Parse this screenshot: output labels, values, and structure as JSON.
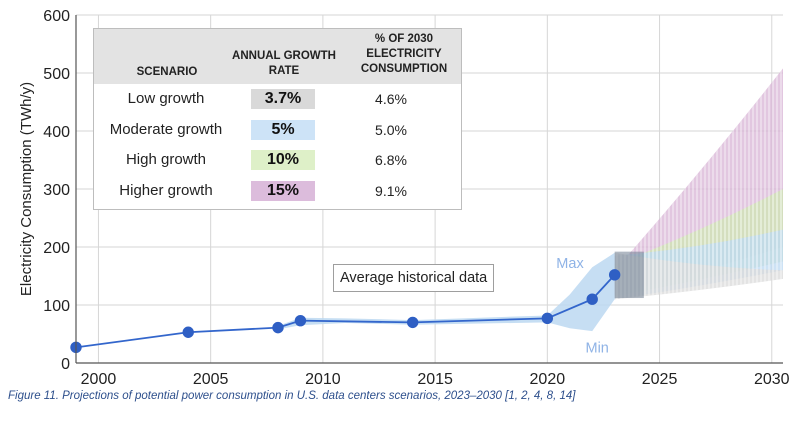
{
  "chart_data": {
    "type": "line",
    "ylabel": "Electricity Consumption (TWh/y)",
    "xlim": [
      1999,
      2030.5
    ],
    "ylim": [
      0,
      600
    ],
    "x_ticks": [
      2000,
      2005,
      2010,
      2015,
      2020,
      2025,
      2030
    ],
    "y_ticks": [
      0,
      100,
      200,
      300,
      400,
      500,
      600
    ],
    "grid": true,
    "historical": {
      "name": "Average historical data",
      "points": [
        {
          "x": 1999,
          "y": 27
        },
        {
          "x": 2004,
          "y": 53
        },
        {
          "x": 2008,
          "y": 61
        },
        {
          "x": 2009,
          "y": 73
        },
        {
          "x": 2014,
          "y": 70
        },
        {
          "x": 2020,
          "y": 77
        },
        {
          "x": 2022,
          "y": 110
        },
        {
          "x": 2023,
          "y": 152
        }
      ],
      "range_band": [
        {
          "x": 2008,
          "low": 58,
          "high": 64
        },
        {
          "x": 2009,
          "low": 65,
          "high": 78
        },
        {
          "x": 2011,
          "low": 69,
          "high": 77
        },
        {
          "x": 2014,
          "low": 66,
          "high": 74
        },
        {
          "x": 2020,
          "low": 70,
          "high": 82
        },
        {
          "x": 2021,
          "low": 60,
          "high": 118
        },
        {
          "x": 2022,
          "low": 55,
          "high": 165
        },
        {
          "x": 2023,
          "low": 110,
          "high": 190
        }
      ],
      "annotations": {
        "max": "Max",
        "min": "Min"
      }
    },
    "scenarios": [
      {
        "name": "Low growth",
        "rate": "3.7%",
        "share_2030": "4.6%",
        "color": "#d9d9d9",
        "range_2030": [
          145,
          160
        ]
      },
      {
        "name": "Moderate growth",
        "rate": "5%",
        "share_2030": "5.0%",
        "color": "#bcd8f1",
        "range_2030": [
          160,
          230
        ]
      },
      {
        "name": "High growth",
        "rate": "10%",
        "share_2030": "6.8%",
        "color": "#cfe6b3",
        "range_2030": [
          175,
          300
        ]
      },
      {
        "name": "Higher growth",
        "rate": "15%",
        "share_2030": "9.1%",
        "color": "#d8b4d6",
        "range_2030": [
          200,
          508
        ]
      }
    ]
  },
  "table": {
    "headers": [
      "SCENARIO",
      "ANNUAL GROWTH RATE",
      "% OF 2030 ELECTRICITY CONSUMPTION"
    ]
  },
  "caption": "Figure 11. Projections of potential power consumption in U.S. data centers scenarios, 2023–2030 [1, 2, 4, 8, 14]"
}
